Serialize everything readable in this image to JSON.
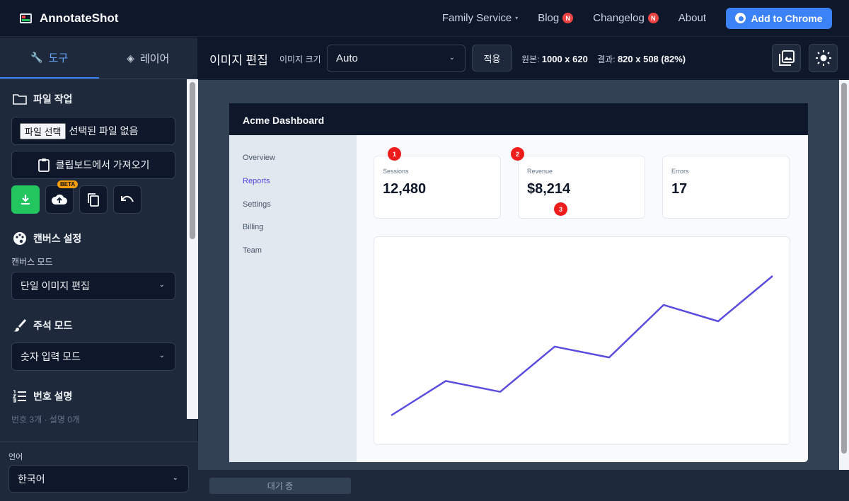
{
  "app": {
    "brand": "AnnotateShot",
    "nav": [
      {
        "label": "Family Service",
        "badge": ""
      },
      {
        "label": "Blog",
        "badge": "N"
      },
      {
        "label": "Changelog",
        "badge": "N"
      },
      {
        "label": "About",
        "badge": ""
      }
    ],
    "cta": "Add to Chrome"
  },
  "sidebar": {
    "tabs": [
      {
        "label": "도구",
        "icon": "wrench-icon",
        "active": true
      },
      {
        "label": "레이어",
        "icon": "layers-icon",
        "active": false
      }
    ],
    "file_section": {
      "title": "파일 작업",
      "file_button": "파일 선택",
      "file_status": "선택된 파일 없음",
      "clipboard_button": "클립보드에서 가져오기",
      "upload_badge": "BETA"
    },
    "canvas_section": {
      "title": "캔버스 설정",
      "mode_label": "캔버스 모드",
      "mode_value": "단일 이미지 편집"
    },
    "annotation_section": {
      "title": "주석 모드",
      "mode_value": "숫자 입력 모드"
    },
    "numbers_section": {
      "title": "번호 설명",
      "summary": "번호 3개 · 설명 0개"
    },
    "language": {
      "label": "언어",
      "value": "한국어"
    }
  },
  "toolbar": {
    "title": "이미지 편집",
    "size_label": "이미지 크기",
    "size_value": "Auto",
    "apply": "적용",
    "original_label": "원본:",
    "original_value": "1000 x 620",
    "result_label": "결과:",
    "result_value": "820 x 508 (82%)"
  },
  "status": {
    "text": "대기 중"
  },
  "canvas_image": {
    "title": "Acme Dashboard",
    "nav": [
      "Overview",
      "Reports",
      "Settings",
      "Billing",
      "Team"
    ],
    "active_nav": "Reports",
    "cards": [
      {
        "label": "Sessions",
        "value": "12,480"
      },
      {
        "label": "Revenue",
        "value": "$8,214"
      },
      {
        "label": "Errors",
        "value": "17"
      }
    ],
    "markers": [
      "1",
      "2",
      "3"
    ],
    "line_color": "#5b4ce0",
    "line_values": [
      0,
      19,
      13,
      38,
      32,
      61,
      52,
      77
    ]
  },
  "colors": {
    "accent": "#3b82f6",
    "success": "#22c55e",
    "badge": "#ef4444"
  }
}
